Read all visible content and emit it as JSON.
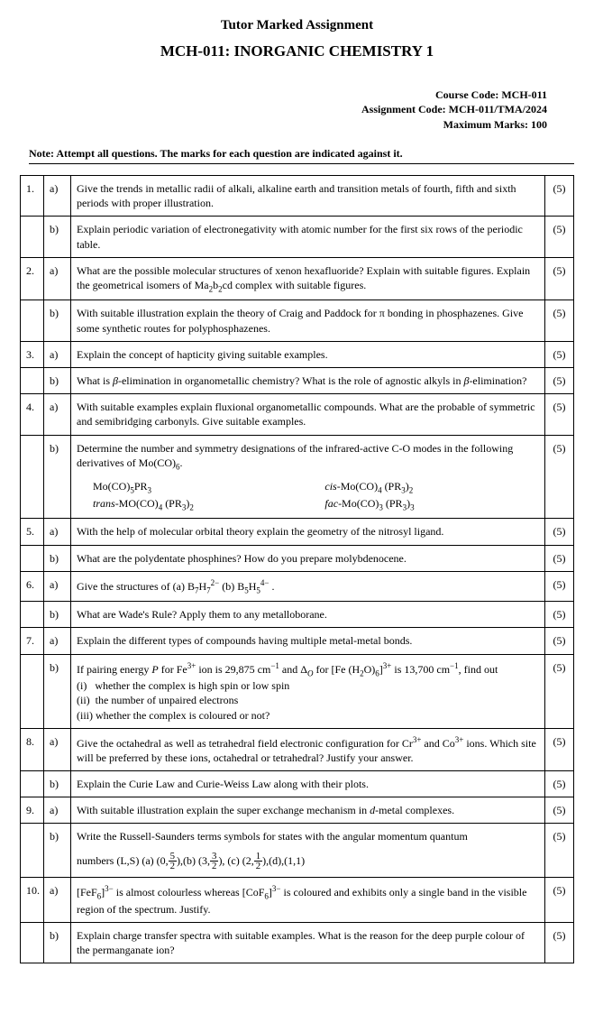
{
  "header": {
    "title": "Tutor Marked Assignment",
    "subtitle": "MCH-011: INORGANIC CHEMISTRY 1"
  },
  "meta": {
    "course_code": "Course Code: MCH-011",
    "assignment_code": "Assignment Code: MCH-011/TMA/2024",
    "max_marks": "Maximum Marks: 100"
  },
  "note": "Note: Attempt all questions. The marks for each question are indicated against it.",
  "rows": [
    {
      "num": "1.",
      "part": "a)",
      "body": "Give the trends in metallic radii of alkali, alkaline earth and transition metals of fourth, fifth and sixth periods with proper illustration.",
      "mark": "(5)"
    },
    {
      "num": "",
      "part": "b)",
      "body": "Explain periodic variation of electronegativity with atomic number for the first six rows of the periodic table.",
      "mark": "(5)"
    },
    {
      "num": "2.",
      "part": "a)",
      "html": "What are the possible molecular structures of xenon hexafluoride? Explain with suitable figures. Explain the geometrical isomers of Ma<span class='sub'>2</span>b<span class='sub'>2</span>cd complex with suitable figures.",
      "mark": "(5)"
    },
    {
      "num": "",
      "part": "b)",
      "html": "With suitable illustration explain the theory of Craig and Paddock for π bonding in phosphazenes. Give some synthetic routes for polyphosphazenes.",
      "mark": "(5)"
    },
    {
      "num": "3.",
      "part": "a)",
      "body": "Explain the concept of hapticity giving suitable examples.",
      "mark": "(5)"
    },
    {
      "num": "",
      "part": "b)",
      "html": "What is <span class='ital'>β</span>-elimination in organometallic chemistry?  What is the role of agnostic alkyls in <span class='ital'>β</span>-elimination?",
      "mark": "(5)"
    },
    {
      "num": "4.",
      "part": "a)",
      "body": "With suitable examples explain fluxional organometallic compounds. What are the probable of symmetric and semibridging carbonyls. Give suitable examples.",
      "mark": "(5)"
    },
    {
      "num": "",
      "part": "b)",
      "html": "Determine the number and symmetry designations of the infrared-active C-O modes in the following derivatives of Mo(CO)<span class='sub'>6</span>.<div style='height:8px'></div><div class='indent-block'><div class='compound-row'><div class='lcol'>Mo(CO)<span class='sub'>5</span>PR<span class='sub'>3</span></div><div class='rcol'><span class='ital'>cis</span>-Mo(CO)<span class='sub'>4</span> (PR<span class='sub'>3</span>)<span class='sub'>2</span></div></div><div class='compound-row'><div class='lcol'><span class='ital'>trans</span>-MO(CO)<span class='sub'>4</span> (PR<span class='sub'>3</span>)<span class='sub'>2</span></div><div class='rcol'><span class='ital'>fac</span>-Mo(CO)<span class='sub'>3</span> (PR<span class='sub'>3</span>)<span class='sub'>3</span></div></div></div>",
      "mark": "(5)"
    },
    {
      "num": "5.",
      "part": "a)",
      "body": "With the help of molecular orbital theory explain the geometry of the nitrosyl ligand.",
      "mark": "(5)"
    },
    {
      "num": "",
      "part": "b)",
      "body": "What are the polydentate phosphines? How do you prepare molybdenocene.",
      "mark": "(5)"
    },
    {
      "num": "6.",
      "part": "a)",
      "html": "Give the structures of (a)  B<span class='sub'>7</span>H<span class='sub'>7</span><span class='sup'>2−</span> (b)  B<span class='sub'>5</span>H<span class='sub'>5</span><span class='sup'>4−</span>  .",
      "mark": "(5)"
    },
    {
      "num": "",
      "part": "b)",
      "body": "What are Wade's Rule? Apply them to any metalloborane.",
      "mark": "(5)"
    },
    {
      "num": "7.",
      "part": "a)",
      "body": "Explain the different types of compounds having multiple metal-metal bonds.",
      "mark": "(5)"
    },
    {
      "num": "",
      "part": "b)",
      "html": "If pairing energy <span class='ital'>P</span> for Fe<span class='sup'>3+</span> ion is 29,875 cm<span class='sup'>−1</span> and Δ<span class='sub ital'>O</span> for [Fe (H<span class='sub'>2</span>O)<span class='sub'>6</span>]<span class='sup'>3+</span> is 13,700 cm<span class='sup'>−1</span>, find out<br>(i)&nbsp;&nbsp; whether the complex is high spin or low spin<br>(ii)&nbsp;&nbsp;the number of unpaired electrons<br>(iii)&nbsp;whether the complex is coloured or not?",
      "mark": "(5)"
    },
    {
      "num": "8.",
      "part": "a)",
      "html": "Give the octahedral as well as tetrahedral field electronic configuration for Cr<span class='sup'>3+</span> and Co<span class='sup'>3+</span> ions. Which site will be preferred by these ions, octahedral or tetrahedral? Justify your answer.",
      "mark": "(5)"
    },
    {
      "num": "",
      "part": "b)",
      "body": "Explain the Curie Law and Curie-Weiss Law along with their plots.",
      "mark": "(5)"
    },
    {
      "num": "9.",
      "part": "a)",
      "html": "With suitable illustration explain the super exchange mechanism in <span class='ital'>d</span>-metal complexes.",
      "mark": "(5)"
    },
    {
      "num": "",
      "part": "b)",
      "html": "Write the Russell-Saunders terms symbols for states with the angular momentum quantum<div style='height:8px'></div>numbers (L,S) (a) (0,<span class='frac'><span class='n'>5</span><span class='d'>2</span></span>),(b) (3,<span class='frac'><span class='n'>3</span><span class='d'>2</span></span>), (c) (2,<span class='frac'><span class='n'>1</span><span class='d'>2</span></span>),(d),(1,1)",
      "mark": "(5)"
    },
    {
      "num": "10.",
      "part": "a)",
      "html": "[FeF<span class='sub'>6</span>]<span class='sup'>3−</span> is almost colourless whereas [CoF<span class='sub'>6</span>]<span class='sup'>3−</span> is coloured and exhibits only a single band in the visible region of the spectrum. Justify.",
      "mark": "(5)"
    },
    {
      "num": "",
      "part": "b)",
      "body": "Explain charge transfer spectra with suitable examples. What is the reason for the deep purple colour of the permanganate ion?",
      "mark": "(5)"
    }
  ]
}
